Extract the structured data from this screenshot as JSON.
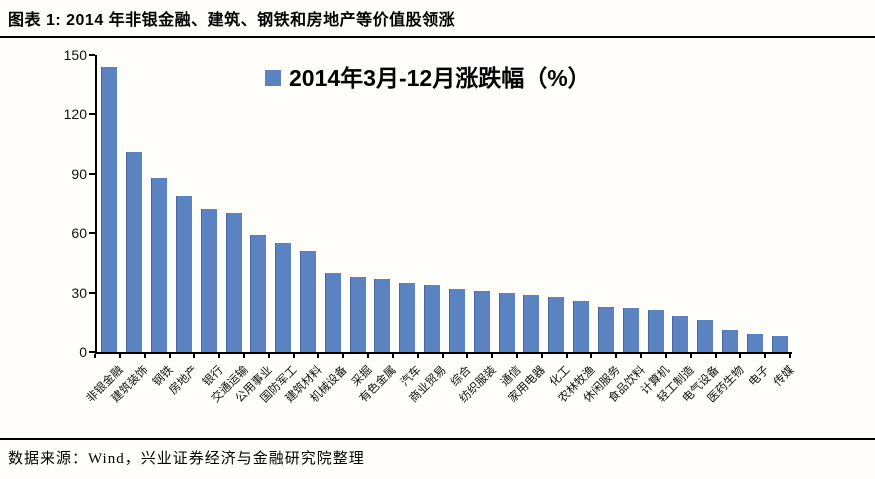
{
  "page": {
    "title": "图表 1: 2014 年非银金融、建筑、钢铁和房地产等价值股领涨",
    "source_note": "数据来源：Wind，兴业证券经济与金融研究院整理",
    "background_color": "#fffefa",
    "rule_color": "#000000"
  },
  "chart_data": {
    "type": "bar",
    "title": "",
    "legend": {
      "label": "2014年3月-12月涨跌幅（%）",
      "marker": "square",
      "color": "#5B83C1",
      "position": "inside-top-center"
    },
    "categories": [
      "非银金融",
      "建筑装饰",
      "钢铁",
      "房地产",
      "银行",
      "交通运输",
      "公用事业",
      "国防军工",
      "建筑材料",
      "机械设备",
      "采掘",
      "有色金属",
      "汽车",
      "商业贸易",
      "综合",
      "纺织服装",
      "通信",
      "家用电器",
      "化工",
      "农林牧渔",
      "休闲服务",
      "食品饮料",
      "计算机",
      "轻工制造",
      "电气设备",
      "医药生物",
      "电子",
      "传媒"
    ],
    "values": [
      144,
      101,
      88,
      79,
      72,
      70,
      59,
      55,
      51,
      40,
      38,
      37,
      35,
      34,
      32,
      31,
      30,
      29,
      28,
      26,
      23,
      22,
      21,
      18,
      16,
      11,
      9,
      8
    ],
    "xlabel": "",
    "ylabel": "",
    "ylim": [
      0,
      150
    ],
    "yticks": [
      0,
      30,
      60,
      90,
      120,
      150
    ],
    "grid": false,
    "bar_color": "#5B83C1",
    "bar_border_color": "#47689B",
    "axis_color": "#000000",
    "tick_label_color": "#111111"
  }
}
